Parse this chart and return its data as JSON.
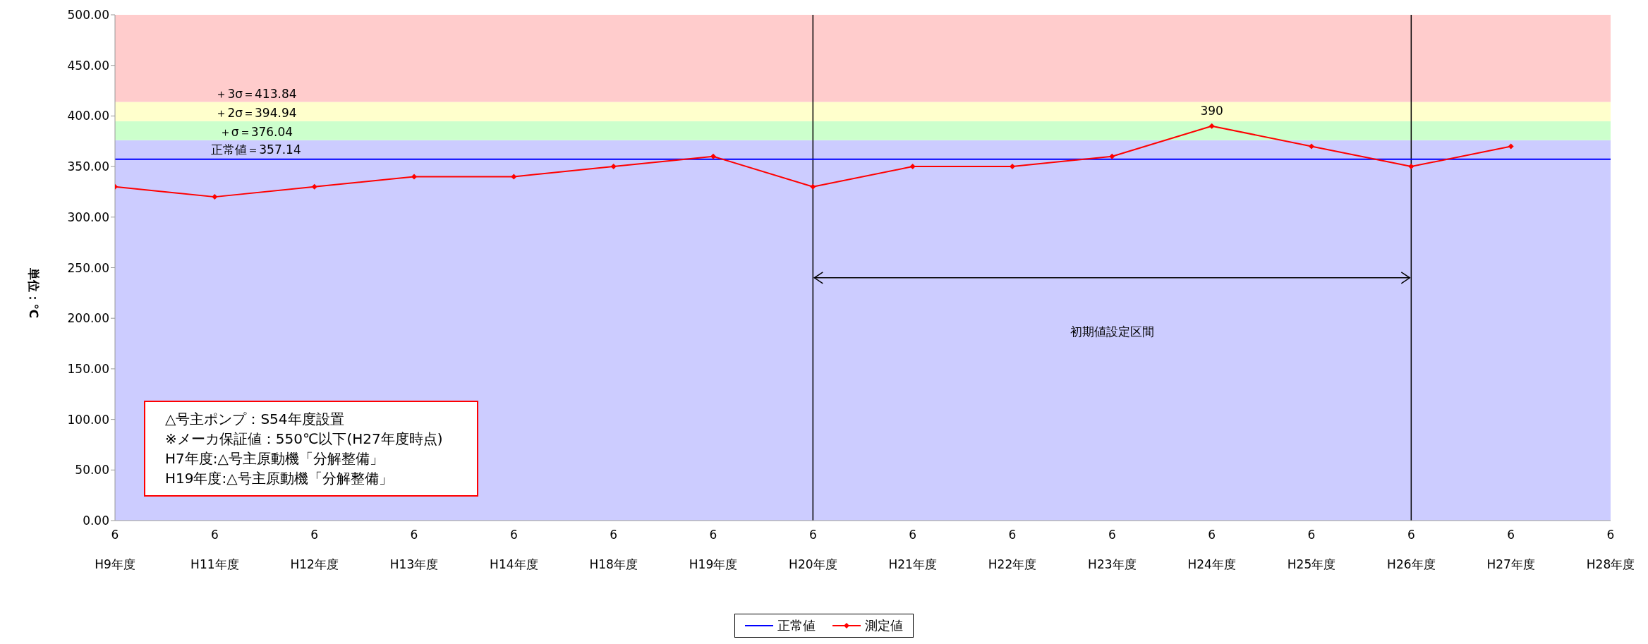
{
  "chart_data": {
    "type": "line",
    "categories": [
      "6\nH9年度",
      "6\nH11年度",
      "6\nH12年度",
      "6\nH13年度",
      "6\nH14年度",
      "6\nH18年度",
      "6\nH19年度",
      "6\nH20年度",
      "6\nH21年度",
      "6\nH22年度",
      "6\nH23年度",
      "6\nH24年度",
      "6\nH25年度",
      "6\nH26年度",
      "6\nH27年度",
      "6\nH28年度"
    ],
    "ylabel": "単位：℃",
    "ylim": [
      0,
      500
    ],
    "yticks": [
      {
        "value": 0,
        "label": "0.00"
      },
      {
        "value": 50,
        "label": "50.00"
      },
      {
        "value": 100,
        "label": "100.00"
      },
      {
        "value": 150,
        "label": "150.00"
      },
      {
        "value": 200,
        "label": "200.00"
      },
      {
        "value": 250,
        "label": "250.00"
      },
      {
        "value": 300,
        "label": "300.00"
      },
      {
        "value": 350,
        "label": "350.00"
      },
      {
        "value": 400,
        "label": "400.00"
      },
      {
        "value": 450,
        "label": "450.00"
      },
      {
        "value": 500,
        "label": "500.00"
      }
    ],
    "series": [
      {
        "name": "正常値",
        "color": "#0000ff",
        "marker": "none",
        "values": [
          357.14,
          357.14,
          357.14,
          357.14,
          357.14,
          357.14,
          357.14,
          357.14,
          357.14,
          357.14,
          357.14,
          357.14,
          357.14,
          357.14,
          357.14,
          357.14
        ]
      },
      {
        "name": "測定値",
        "color": "#ff0000",
        "marker": "diamond",
        "values": [
          330,
          320,
          330,
          340,
          340,
          350,
          360,
          330,
          350,
          350,
          360,
          390,
          370,
          350,
          370,
          null
        ],
        "value_labels": [
          null,
          null,
          null,
          null,
          null,
          null,
          null,
          null,
          null,
          null,
          null,
          "390",
          null,
          null,
          null,
          null
        ]
      }
    ],
    "bands": [
      {
        "axis": "y",
        "from": 0,
        "to": 376.04,
        "color": "#ccccff"
      },
      {
        "axis": "y",
        "from": 376.04,
        "to": 394.94,
        "color": "#ccffcc",
        "label": "＋σ＝376.04"
      },
      {
        "axis": "y",
        "from": 394.94,
        "to": 413.84,
        "color": "#ffffcc",
        "label": "＋2σ＝394.94"
      },
      {
        "axis": "y",
        "from": 413.84,
        "to": 500,
        "color": "#ffcccc",
        "label": "＋3σ＝413.84"
      }
    ],
    "ref_lines": [
      {
        "axis": "x",
        "value": "6\nH20年度",
        "color": "#000000"
      },
      {
        "axis": "x",
        "value": "6\nH26年度",
        "color": "#000000"
      }
    ],
    "annotations": [
      {
        "text": "正常値＝357.14",
        "y": 357.14
      },
      "初期値設定区間",
      "△号主ポンプ：S54年度設置\n※メーカ保証値：550℃以下(H27年度時点)\nH7年度:△号主原動機「分解整備」\nH19年度:△号主原動機「分解整備」"
    ],
    "legend": "bottom"
  }
}
